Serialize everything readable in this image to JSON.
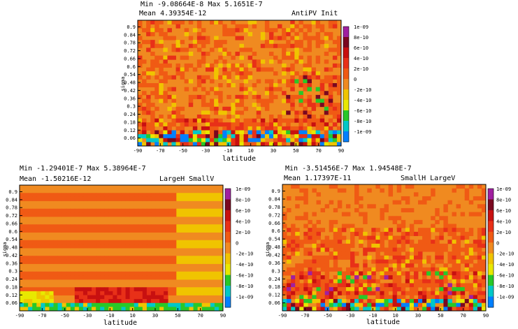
{
  "color_scale": {
    "labels": [
      "1e-09",
      "8e-10",
      "6e-10",
      "4e-10",
      "2e-10",
      "0",
      "-2e-10",
      "-4e-10",
      "-6e-10",
      "-8e-10",
      "-1e-09"
    ],
    "colors": [
      "#a020a0",
      "#7a0820",
      "#c81010",
      "#e83018",
      "#f05a14",
      "#f08a20",
      "#f0c400",
      "#e8e800",
      "#28c828",
      "#00c8c8",
      "#0080ff"
    ]
  },
  "chart_data": [
    {
      "type": "heatmap",
      "title_line1": "Min  -9.08664E-8    Max  5.1651E-7",
      "title_line2": "Mean  4.39354E-12",
      "label": "AntiPV Init",
      "xlabel": "latitude",
      "ylabel": "sigma",
      "xlim": [
        -90,
        90
      ],
      "ylim": [
        0,
        0.95
      ],
      "x_ticks": [
        "-90",
        "-70",
        "-50",
        "-30",
        "-10",
        "10",
        "30",
        "50",
        "70",
        "90"
      ],
      "y_ticks": [
        "0.9",
        "0.84",
        "0.78",
        "0.72",
        "0.66",
        "0.6",
        "0.54",
        "0.48",
        "0.42",
        "0.36",
        "0.3",
        "0.24",
        "0.18",
        "0.12",
        "0.06"
      ]
    },
    {
      "type": "heatmap",
      "title_line1": "Min  -1.29401E-7        Max  5.38964E-7",
      "title_line2": "Mean  -1.50216E-12",
      "label": "LargeH  SmallV",
      "xlabel": "latitude",
      "ylabel": "sigma",
      "xlim": [
        -90,
        90
      ],
      "ylim": [
        0,
        0.95
      ],
      "x_ticks": [
        "-90",
        "-70",
        "-50",
        "-30",
        "-10",
        "10",
        "30",
        "50",
        "70",
        "90"
      ],
      "y_ticks": [
        "0.9",
        "0.84",
        "0.78",
        "0.72",
        "0.66",
        "0.6",
        "0.54",
        "0.48",
        "0.42",
        "0.36",
        "0.3",
        "0.24",
        "0.18",
        "0.12",
        "0.06"
      ]
    },
    {
      "type": "heatmap",
      "title_line1": "Min  -3.51456E-7        Max  1.94548E-7",
      "title_line2": "Mean  1.17397E-11",
      "label": "SmallH  LargeV",
      "xlabel": "latitude",
      "ylabel": "sigma",
      "xlim": [
        -90,
        90
      ],
      "ylim": [
        0,
        0.95
      ],
      "x_ticks": [
        "-90",
        "-70",
        "-50",
        "-30",
        "-10",
        "10",
        "30",
        "50",
        "70",
        "90"
      ],
      "y_ticks": [
        "0.9",
        "0.84",
        "0.78",
        "0.72",
        "0.66",
        "0.6",
        "0.54",
        "0.48",
        "0.42",
        "0.36",
        "0.3",
        "0.24",
        "0.18",
        "0.12",
        "0.06"
      ]
    }
  ]
}
